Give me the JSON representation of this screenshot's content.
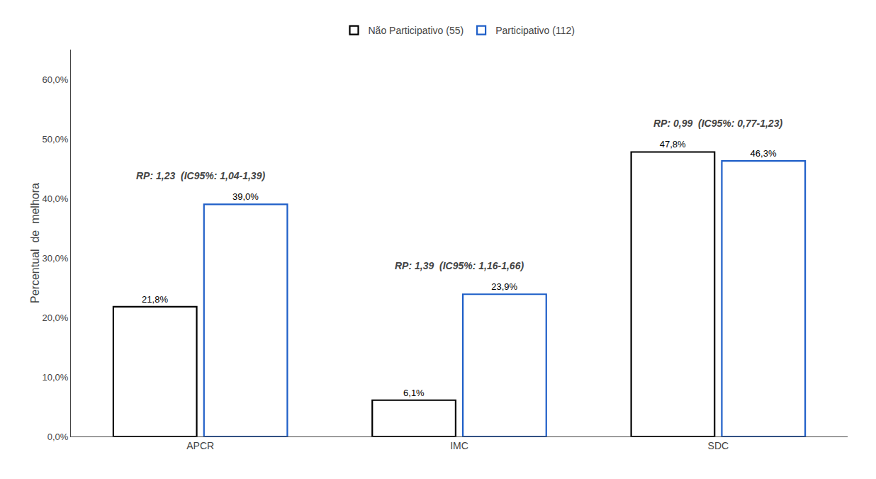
{
  "chart_data": {
    "type": "bar",
    "categories": [
      "APCR",
      "IMC",
      "SDC"
    ],
    "series": [
      {
        "name": "Não Participativo (55)",
        "color": "#000000",
        "values": [
          21.8,
          6.1,
          47.8
        ],
        "value_labels": [
          "21,8%",
          "6,1%",
          "47,8%"
        ]
      },
      {
        "name": "Participativo (112)",
        "color": "#1f5fc8",
        "values": [
          39.0,
          23.9,
          46.3
        ],
        "value_labels": [
          "39,0%",
          "23,9%",
          "46,3%"
        ]
      }
    ],
    "ylabel": "Percentual  de  melhora",
    "ylim": [
      0,
      65
    ],
    "yticks": [
      {
        "value": 0.0,
        "label": "0,0%"
      },
      {
        "value": 10.0,
        "label": "10,0%"
      },
      {
        "value": 20.0,
        "label": "20,0%"
      },
      {
        "value": 30.0,
        "label": "30,0%"
      },
      {
        "value": 40.0,
        "label": "40,0%"
      },
      {
        "value": 50.0,
        "label": "50,0%"
      },
      {
        "value": 60.0,
        "label": "60,0%"
      }
    ],
    "annotations": [
      "RP: 1,23  (IC95%: 1,04-1,39)",
      "RP: 1,39  (IC95%: 1,16-1,66)",
      "RP: 0,99  (IC95%: 0,77-1,23)"
    ],
    "data_labels": true,
    "grid": false,
    "legend": "top"
  }
}
